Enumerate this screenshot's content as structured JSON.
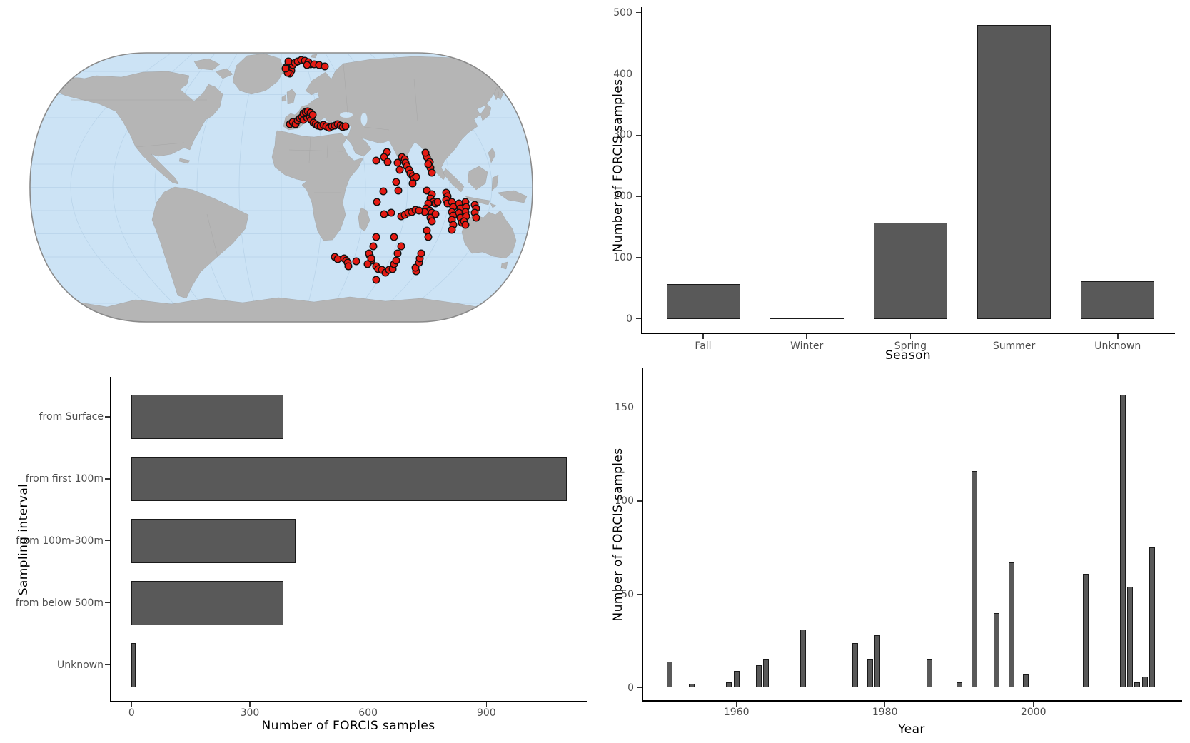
{
  "figure": {
    "kind": "4-panel scientific figure",
    "background": "#ffffff",
    "bar_fill": "#595959",
    "bar_stroke": "#1a1a1a",
    "tick_label_color": "#4d4d4d",
    "axis_title_color": "#000000"
  },
  "chart_data": [
    {
      "id": "season",
      "type": "bar",
      "categories": [
        "Fall",
        "Winter",
        "Spring",
        "Summer",
        "Unknown"
      ],
      "values": [
        57,
        2,
        157,
        480,
        61
      ],
      "title": "",
      "xlabel": "Season",
      "ylabel": "Number of FORCIS samples",
      "ylim": [
        0,
        500
      ],
      "yticks": [
        0,
        100,
        200,
        300,
        400,
        500
      ],
      "grid": false,
      "legend": false,
      "bar_color": "#595959"
    },
    {
      "id": "sampling-interval",
      "type": "bar",
      "orientation": "horizontal",
      "categories": [
        "from Surface",
        "from first 100m",
        "from 100m-300m",
        "from below 500m",
        "Unknown"
      ],
      "values": [
        385,
        1104,
        416,
        385,
        10
      ],
      "title": "",
      "xlabel": "Number of FORCIS samples",
      "ylabel": "Sampling interval",
      "xlim": [
        0,
        1155
      ],
      "xticks": [
        0,
        300,
        600,
        900
      ],
      "grid": false,
      "legend": false,
      "bar_color": "#595959"
    },
    {
      "id": "samples-per-year",
      "type": "bar",
      "x": [
        1951,
        1954,
        1959,
        1960,
        1963,
        1964,
        1969,
        1976,
        1978,
        1979,
        1986,
        1990,
        1992,
        1995,
        1997,
        1999,
        2007,
        2012,
        2013,
        2014,
        2015,
        2016
      ],
      "values": [
        14,
        2,
        3,
        9,
        12,
        15,
        31,
        24,
        15,
        28,
        15,
        3,
        116,
        40,
        67,
        7,
        61,
        157,
        54,
        3,
        6,
        75
      ],
      "title": "",
      "xlabel": "Year",
      "ylabel": "Number of FORCIS samples",
      "ylim": [
        0,
        160
      ],
      "yticks": [
        0,
        50,
        100,
        150
      ],
      "xticks": [
        1960,
        1980,
        2000
      ],
      "grid": false,
      "legend": false,
      "bar_color": "#595959"
    }
  ],
  "map": {
    "type": "scatter-on-world-map",
    "projection_style": "robinson-like",
    "ocean_color": "#cce3f5",
    "graticule_color": "#b7d2e8",
    "land_color": "#b5b5b5",
    "land_border_color": "#9e9e9e",
    "outline_color": "#8a8a8a",
    "point_color": "#e41a13",
    "point_stroke": "#111111",
    "point_radius": 4.8,
    "points": [
      [
        362,
        23
      ],
      [
        365,
        20
      ],
      [
        367,
        25
      ],
      [
        363,
        28
      ],
      [
        368,
        29
      ],
      [
        366,
        33
      ],
      [
        363,
        32
      ],
      [
        370,
        21
      ],
      [
        373,
        18
      ],
      [
        377,
        16
      ],
      [
        382,
        14
      ],
      [
        387,
        15
      ],
      [
        392,
        17
      ],
      [
        395,
        20
      ],
      [
        390,
        21
      ],
      [
        400,
        20
      ],
      [
        407,
        21
      ],
      [
        415,
        23
      ],
      [
        360,
        26
      ],
      [
        364,
        16
      ],
      [
        366,
        104
      ],
      [
        370,
        101
      ],
      [
        374,
        104
      ],
      [
        377,
        99
      ],
      [
        380,
        96
      ],
      [
        383,
        94
      ],
      [
        385,
        98
      ],
      [
        388,
        92
      ],
      [
        390,
        95
      ],
      [
        392,
        90
      ],
      [
        394,
        94
      ],
      [
        396,
        98
      ],
      [
        399,
        102
      ],
      [
        402,
        104
      ],
      [
        385,
        89
      ],
      [
        388,
        87
      ],
      [
        391,
        86
      ],
      [
        395,
        88
      ],
      [
        398,
        91
      ],
      [
        405,
        106
      ],
      [
        409,
        107
      ],
      [
        413,
        105
      ],
      [
        417,
        107
      ],
      [
        421,
        109
      ],
      [
        425,
        107
      ],
      [
        429,
        106
      ],
      [
        433,
        104
      ],
      [
        437,
        106
      ],
      [
        440,
        108
      ],
      [
        444,
        107
      ],
      [
        487,
        155
      ],
      [
        502,
        143
      ],
      [
        498,
        150
      ],
      [
        503,
        157
      ],
      [
        517,
        158
      ],
      [
        523,
        150
      ],
      [
        527,
        153
      ],
      [
        528,
        158
      ],
      [
        530,
        163
      ],
      [
        533,
        168
      ],
      [
        535,
        173
      ],
      [
        538,
        177
      ],
      [
        540,
        180
      ],
      [
        543,
        178
      ],
      [
        538,
        187
      ],
      [
        515,
        185
      ],
      [
        518,
        197
      ],
      [
        497,
        198
      ],
      [
        488,
        213
      ],
      [
        520,
        168
      ],
      [
        558,
        150
      ],
      [
        562,
        157
      ],
      [
        563,
        165
      ],
      [
        565,
        172
      ],
      [
        560,
        160
      ],
      [
        556,
        144
      ],
      [
        558,
        197
      ],
      [
        565,
        202
      ],
      [
        563,
        208
      ],
      [
        567,
        213
      ],
      [
        560,
        215
      ],
      [
        557,
        222
      ],
      [
        562,
        225
      ],
      [
        565,
        228
      ],
      [
        563,
        235
      ],
      [
        555,
        227
      ],
      [
        570,
        215
      ],
      [
        573,
        213
      ],
      [
        585,
        200
      ],
      [
        587,
        205
      ],
      [
        585,
        210
      ],
      [
        587,
        215
      ],
      [
        558,
        253
      ],
      [
        560,
        262
      ],
      [
        565,
        240
      ],
      [
        570,
        230
      ],
      [
        498,
        230
      ],
      [
        508,
        228
      ],
      [
        522,
        233
      ],
      [
        527,
        231
      ],
      [
        532,
        228
      ],
      [
        537,
        227
      ],
      [
        542,
        224
      ],
      [
        547,
        225
      ],
      [
        593,
        213
      ],
      [
        595,
        220
      ],
      [
        593,
        227
      ],
      [
        595,
        232
      ],
      [
        593,
        238
      ],
      [
        595,
        245
      ],
      [
        593,
        252
      ],
      [
        603,
        215
      ],
      [
        605,
        222
      ],
      [
        603,
        228
      ],
      [
        605,
        235
      ],
      [
        607,
        242
      ],
      [
        612,
        213
      ],
      [
        613,
        220
      ],
      [
        612,
        227
      ],
      [
        613,
        233
      ],
      [
        610,
        240
      ],
      [
        612,
        245
      ],
      [
        625,
        217
      ],
      [
        627,
        222
      ],
      [
        625,
        228
      ],
      [
        627,
        235
      ],
      [
        429,
        290
      ],
      [
        433,
        293
      ],
      [
        442,
        292
      ],
      [
        445,
        295
      ],
      [
        447,
        298
      ],
      [
        448,
        303
      ],
      [
        487,
        262
      ],
      [
        483,
        275
      ],
      [
        478,
        288
      ],
      [
        480,
        295
      ],
      [
        475,
        300
      ],
      [
        487,
        303
      ],
      [
        490,
        307
      ],
      [
        495,
        308
      ],
      [
        500,
        312
      ],
      [
        505,
        308
      ],
      [
        510,
        307
      ],
      [
        512,
        300
      ],
      [
        515,
        295
      ],
      [
        517,
        285
      ],
      [
        522,
        275
      ],
      [
        512,
        262
      ],
      [
        543,
        310
      ],
      [
        542,
        305
      ],
      [
        547,
        298
      ],
      [
        548,
        292
      ],
      [
        550,
        285
      ],
      [
        477,
        285
      ],
      [
        480,
        292
      ],
      [
        487,
        322
      ],
      [
        459,
        296
      ]
    ]
  }
}
